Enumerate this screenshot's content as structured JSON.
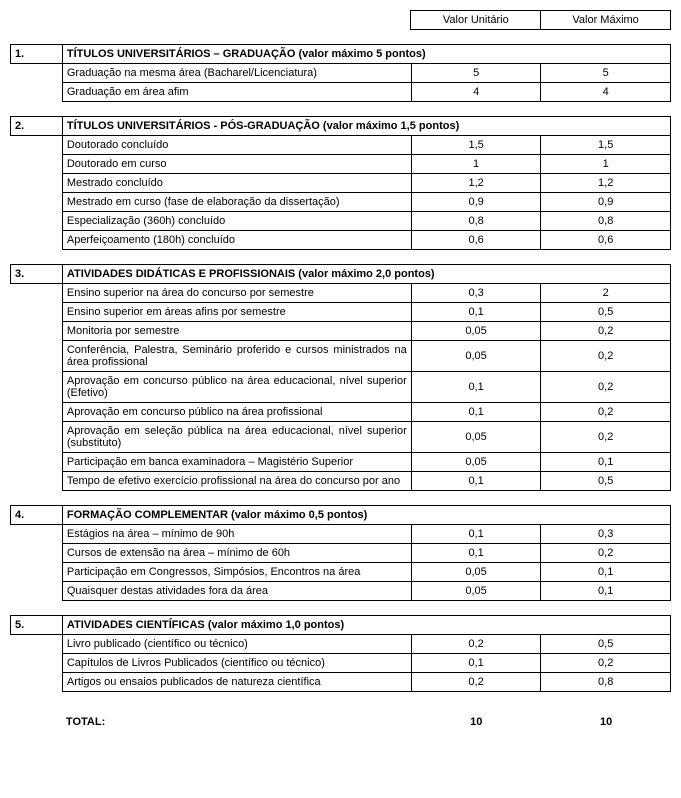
{
  "headers": {
    "unit": "Valor Unitário",
    "max": "Valor Máximo"
  },
  "sections": [
    {
      "num": "1.",
      "title": "TÍTULOS UNIVERSITÁRIOS – GRADUAÇÃO (valor máximo 5 pontos)",
      "rows": [
        {
          "desc": "Graduação na mesma área (Bacharel/Licenciatura)",
          "unit": "5",
          "max": "5"
        },
        {
          "desc": "Graduação em área afim",
          "unit": "4",
          "max": "4"
        }
      ]
    },
    {
      "num": "2.",
      "title": "TÍTULOS UNIVERSITÁRIOS -  PÓS-GRADUAÇÃO (valor máximo 1,5 pontos)",
      "rows": [
        {
          "desc": "Doutorado concluído",
          "unit": "1,5",
          "max": "1,5"
        },
        {
          "desc": "Doutorado em curso",
          "unit": "1",
          "max": "1"
        },
        {
          "desc": "Mestrado concluído",
          "unit": "1,2",
          "max": "1,2"
        },
        {
          "desc": "Mestrado em curso (fase de elaboração da dissertação)",
          "unit": "0,9",
          "max": "0,9"
        },
        {
          "desc": "Especialização (360h) concluído",
          "unit": "0,8",
          "max": "0,8"
        },
        {
          "desc": "Aperfeiçoamento (180h) concluído",
          "unit": "0,6",
          "max": "0,6"
        }
      ]
    },
    {
      "num": "3.",
      "title": "ATIVIDADES DIDÁTICAS E PROFISSIONAIS (valor máximo 2,0 pontos)",
      "rows": [
        {
          "desc": "Ensino superior na área do concurso por semestre",
          "unit": "0,3",
          "max": "2"
        },
        {
          "desc": "Ensino superior em áreas afins por semestre",
          "unit": "0,1",
          "max": "0,5"
        },
        {
          "desc": "Monitoria por semestre",
          "unit": "0,05",
          "max": "0,2"
        },
        {
          "desc": "Conferência, Palestra, Seminário proferido e cursos ministrados na área profissional",
          "unit": "0,05",
          "max": "0,2",
          "justify": true
        },
        {
          "desc": "Aprovação em concurso público na área educacional, nível superior (Efetivo)",
          "unit": "0,1",
          "max": "0,2",
          "justify": true
        },
        {
          "desc": "Aprovação em concurso público na área profissional",
          "unit": "0,1",
          "max": "0,2"
        },
        {
          "desc": "Aprovação em seleção pública na área educacional, nível superior (substituto)",
          "unit": "0,05",
          "max": "0,2",
          "justify": true
        },
        {
          "desc": "Participação em banca examinadora – Magistério Superior",
          "unit": "0,05",
          "max": "0,1"
        },
        {
          "desc": "Tempo de efetivo exercício profissional na área do concurso por ano",
          "unit": "0,1",
          "max": "0,5",
          "justify": true
        }
      ]
    },
    {
      "num": "4.",
      "title": "FORMAÇÃO COMPLEMENTAR (valor máximo 0,5 pontos)",
      "rows": [
        {
          "desc": "Estágios na área – mínimo de 90h",
          "unit": "0,1",
          "max": "0,3"
        },
        {
          "desc": "Cursos de extensão na área – mínimo de 60h",
          "unit": "0,1",
          "max": "0,2"
        },
        {
          "desc": "Participação em Congressos, Simpósios, Encontros na área",
          "unit": "0,05",
          "max": "0,1"
        },
        {
          "desc": "Quaisquer destas atividades fora da área",
          "unit": "0,05",
          "max": "0,1"
        }
      ]
    },
    {
      "num": "5.",
      "title": "ATIVIDADES CIENTÍFICAS (valor máximo 1,0 pontos)",
      "rows": [
        {
          "desc": "Livro publicado (científico ou técnico)",
          "unit": "0,2",
          "max": "0,5"
        },
        {
          "desc": "Capítulos de Livros Publicados (científico ou técnico)",
          "unit": "0,1",
          "max": "0,2"
        },
        {
          "desc": "Artigos ou ensaios publicados de natureza científica",
          "unit": "0,2",
          "max": "0,8"
        }
      ]
    }
  ],
  "total": {
    "label": "TOTAL:",
    "unit": "10",
    "max": "10"
  }
}
